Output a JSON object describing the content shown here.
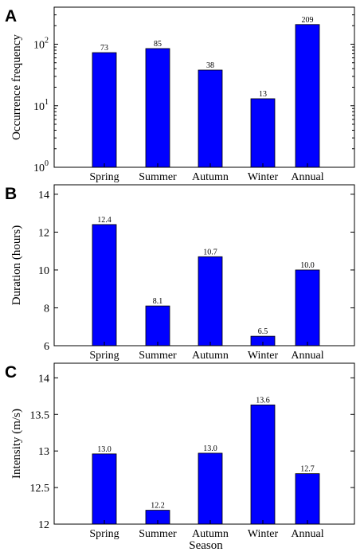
{
  "colors": {
    "bar": "#0000ff"
  },
  "chart_data": [
    {
      "type": "bar",
      "panel": "A",
      "categories": [
        "Spring",
        "Summer",
        "Autumn",
        "Winter",
        "Annual"
      ],
      "values": [
        73,
        85,
        38,
        13,
        209
      ],
      "value_labels": [
        "73",
        "85",
        "38",
        "13",
        "209"
      ],
      "ylabel": "Occurrence frequency",
      "yscale": "log",
      "ylim": [
        1,
        400
      ],
      "yticks": [
        1,
        10,
        100
      ],
      "ytick_labels": [
        [
          "10",
          "0"
        ],
        [
          "10",
          "1"
        ],
        [
          "10",
          "2"
        ]
      ],
      "grid": false
    },
    {
      "type": "bar",
      "panel": "B",
      "categories": [
        "Spring",
        "Summer",
        "Autumn",
        "Winter",
        "Annual"
      ],
      "values": [
        12.4,
        8.1,
        10.7,
        6.5,
        10.0
      ],
      "value_labels": [
        "12.4",
        "8.1",
        "10.7",
        "6.5",
        "10.0"
      ],
      "ylabel": "Duration (hours)",
      "yscale": "linear",
      "ylim": [
        6,
        14.5
      ],
      "yticks": [
        6,
        8,
        10,
        12,
        14
      ],
      "ytick_labels": [
        "6",
        "8",
        "10",
        "12",
        "14"
      ],
      "grid": false
    },
    {
      "type": "bar",
      "panel": "C",
      "categories": [
        "Spring",
        "Summer",
        "Autumn",
        "Winter",
        "Annual"
      ],
      "values": [
        12.96,
        12.19,
        12.97,
        13.63,
        12.69
      ],
      "value_labels": [
        "13.0",
        "12.2",
        "13.0",
        "13.6",
        "12.7"
      ],
      "ylabel": "Intensity (m/s)",
      "xlabel": "Season",
      "yscale": "linear",
      "ylim": [
        12,
        14.2
      ],
      "yticks": [
        12,
        12.5,
        13,
        13.5,
        14
      ],
      "ytick_labels": [
        "12",
        "12.5",
        "13",
        "13.5",
        "14"
      ],
      "grid": false
    }
  ]
}
